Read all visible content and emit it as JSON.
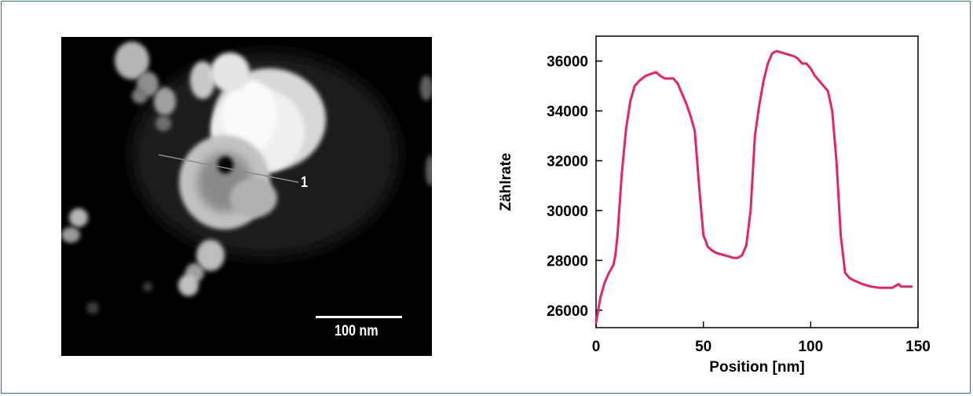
{
  "image": {
    "profile_label": "1",
    "scale_bar_label": "100 nm"
  },
  "chart_data": {
    "type": "line",
    "xlabel": "Position [nm]",
    "ylabel": "Zählrate",
    "xlim": [
      0,
      150
    ],
    "ylim": [
      25300,
      37000
    ],
    "xticks": [
      0,
      50,
      100,
      150
    ],
    "yticks": [
      26000,
      28000,
      30000,
      32000,
      34000,
      36000
    ],
    "line_color": "#e8226a",
    "series": [
      {
        "x": [
          0,
          2,
          4,
          6,
          8,
          9,
          10,
          12,
          14,
          16,
          18,
          20,
          23,
          26,
          28,
          30,
          32,
          34,
          36,
          38,
          40,
          42,
          44,
          46,
          48,
          50,
          51,
          52,
          54,
          56,
          58,
          60,
          62,
          64,
          66,
          68,
          70,
          72,
          74,
          76,
          78,
          80,
          82,
          84,
          86,
          88,
          90,
          92,
          94,
          96,
          98,
          100,
          102,
          104,
          106,
          108,
          110,
          112,
          114,
          116,
          118,
          120,
          124,
          128,
          132,
          136,
          138,
          140,
          141,
          142,
          145,
          147
        ],
        "y": [
          25500,
          26500,
          27100,
          27500,
          27800,
          28200,
          29000,
          31500,
          33300,
          34400,
          35000,
          35200,
          35400,
          35500,
          35550,
          35400,
          35300,
          35300,
          35300,
          35100,
          34700,
          34300,
          33800,
          33200,
          31000,
          29000,
          28800,
          28550,
          28400,
          28300,
          28250,
          28200,
          28150,
          28100,
          28100,
          28200,
          28600,
          30000,
          33000,
          34200,
          35200,
          35900,
          36300,
          36400,
          36350,
          36300,
          36250,
          36200,
          36100,
          35900,
          35900,
          35700,
          35400,
          35200,
          35000,
          34800,
          34000,
          32000,
          29000,
          27500,
          27300,
          27200,
          27050,
          26950,
          26900,
          26900,
          26900,
          27000,
          27050,
          26950,
          26950,
          26950
        ]
      }
    ]
  }
}
